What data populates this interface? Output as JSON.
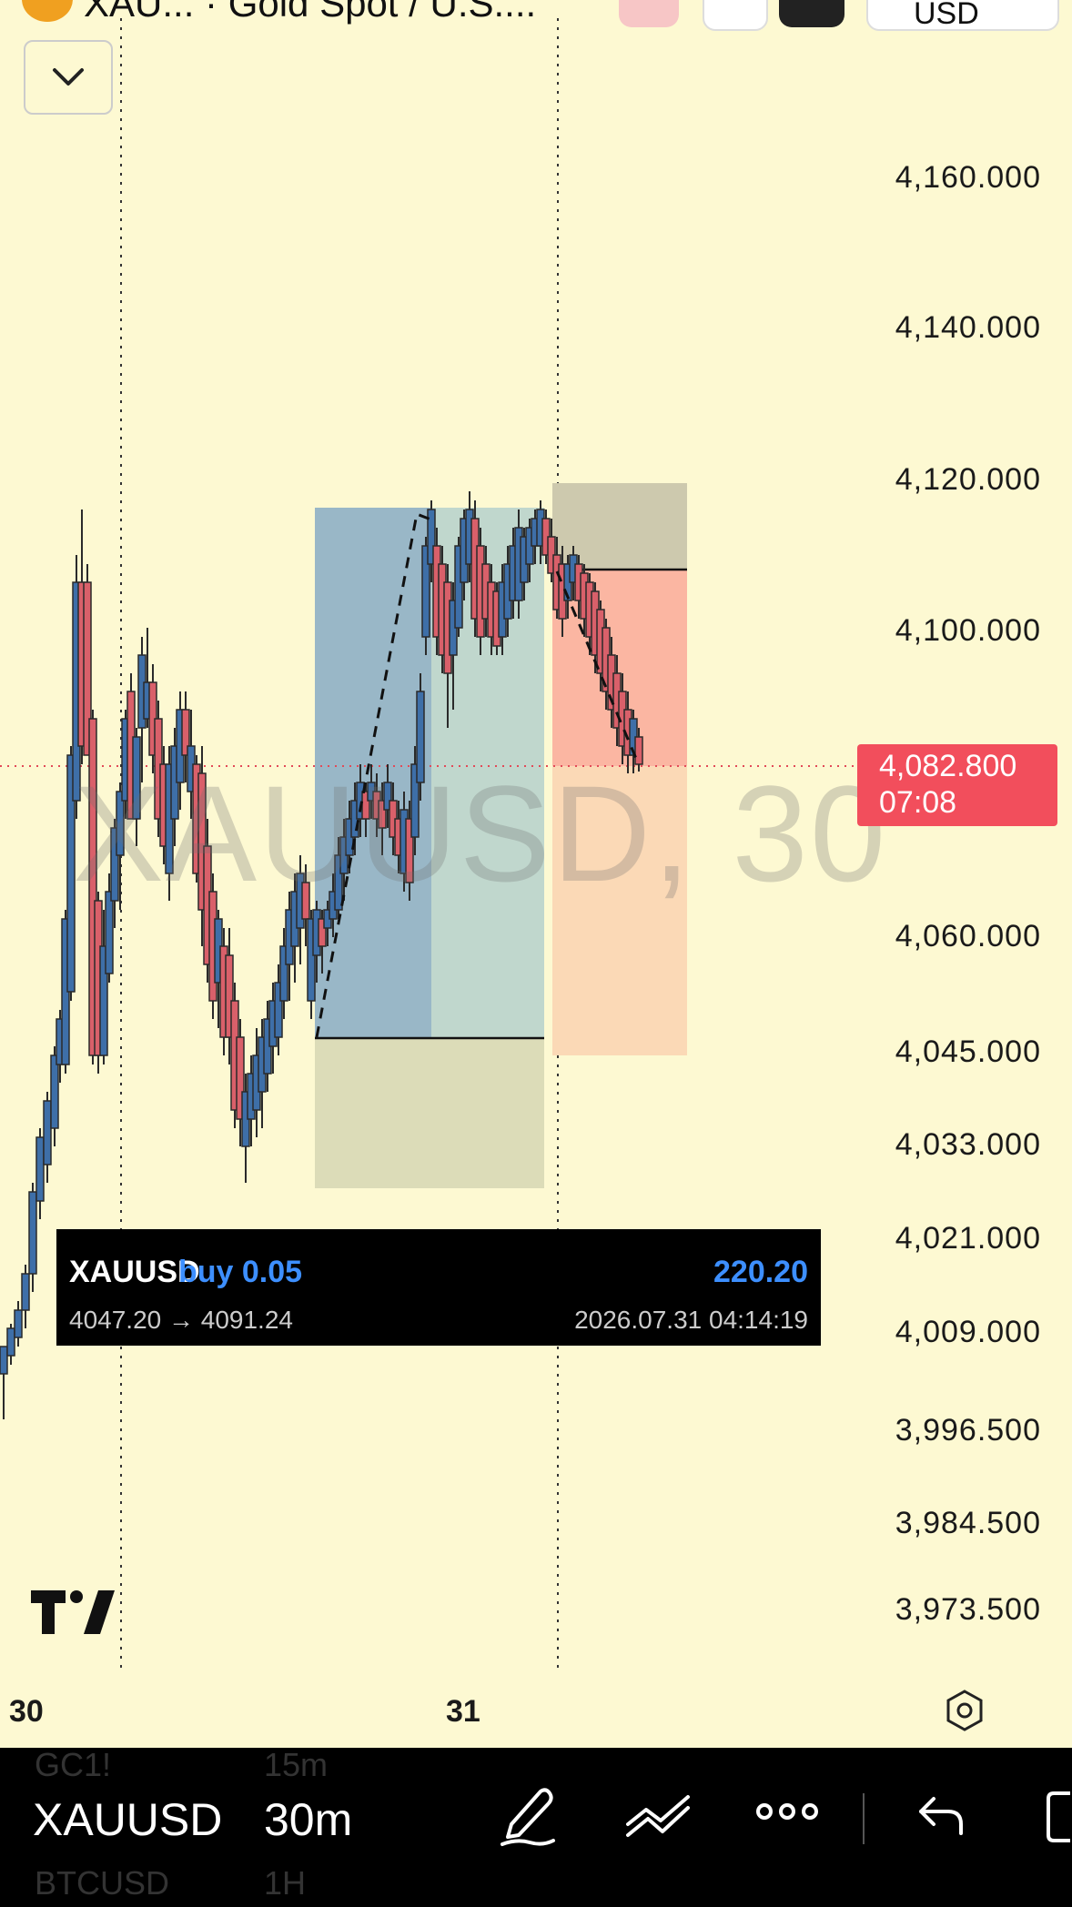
{
  "header": {
    "title": "XAU... · Gold Spot / U.S....",
    "currency": "USD"
  },
  "price_axis": {
    "labels": [
      "4,160.000",
      "4,140.000",
      "4,120.000",
      "4,100.000",
      "4,060.000",
      "4,045.000",
      "4,033.000",
      "4,021.000",
      "4,009.000",
      "3,996.500",
      "3,984.500",
      "3,973.500"
    ]
  },
  "current_price": {
    "value": "4,082.800",
    "countdown": "07:08",
    "color": "#f24e5c"
  },
  "watermark": "XAUUSD, 30",
  "trade": {
    "symbol": "XAUUSD",
    "side": "buy 0.05",
    "pnl": "220.20",
    "range": "4047.20 → 4091.24",
    "time": "2026.07.31 04:14:19"
  },
  "time_axis": {
    "labels": [
      "30",
      "31"
    ]
  },
  "bottom_bar": {
    "symbol": "XAUUSD",
    "interval": "30m",
    "symbol_prev": "GC1!",
    "interval_prev": "15m",
    "symbol_next": "BTCUSD",
    "interval_next": "1H"
  },
  "colors": {
    "background": "#fdf9d2",
    "up_candle": "#3e6fa8",
    "down_candle": "#d9606a",
    "accent_blue": "#3d8fff"
  },
  "chart_data": {
    "type": "candlestick",
    "y_range": [
      3973.5,
      4160
    ],
    "current_price": 4082.8
  }
}
